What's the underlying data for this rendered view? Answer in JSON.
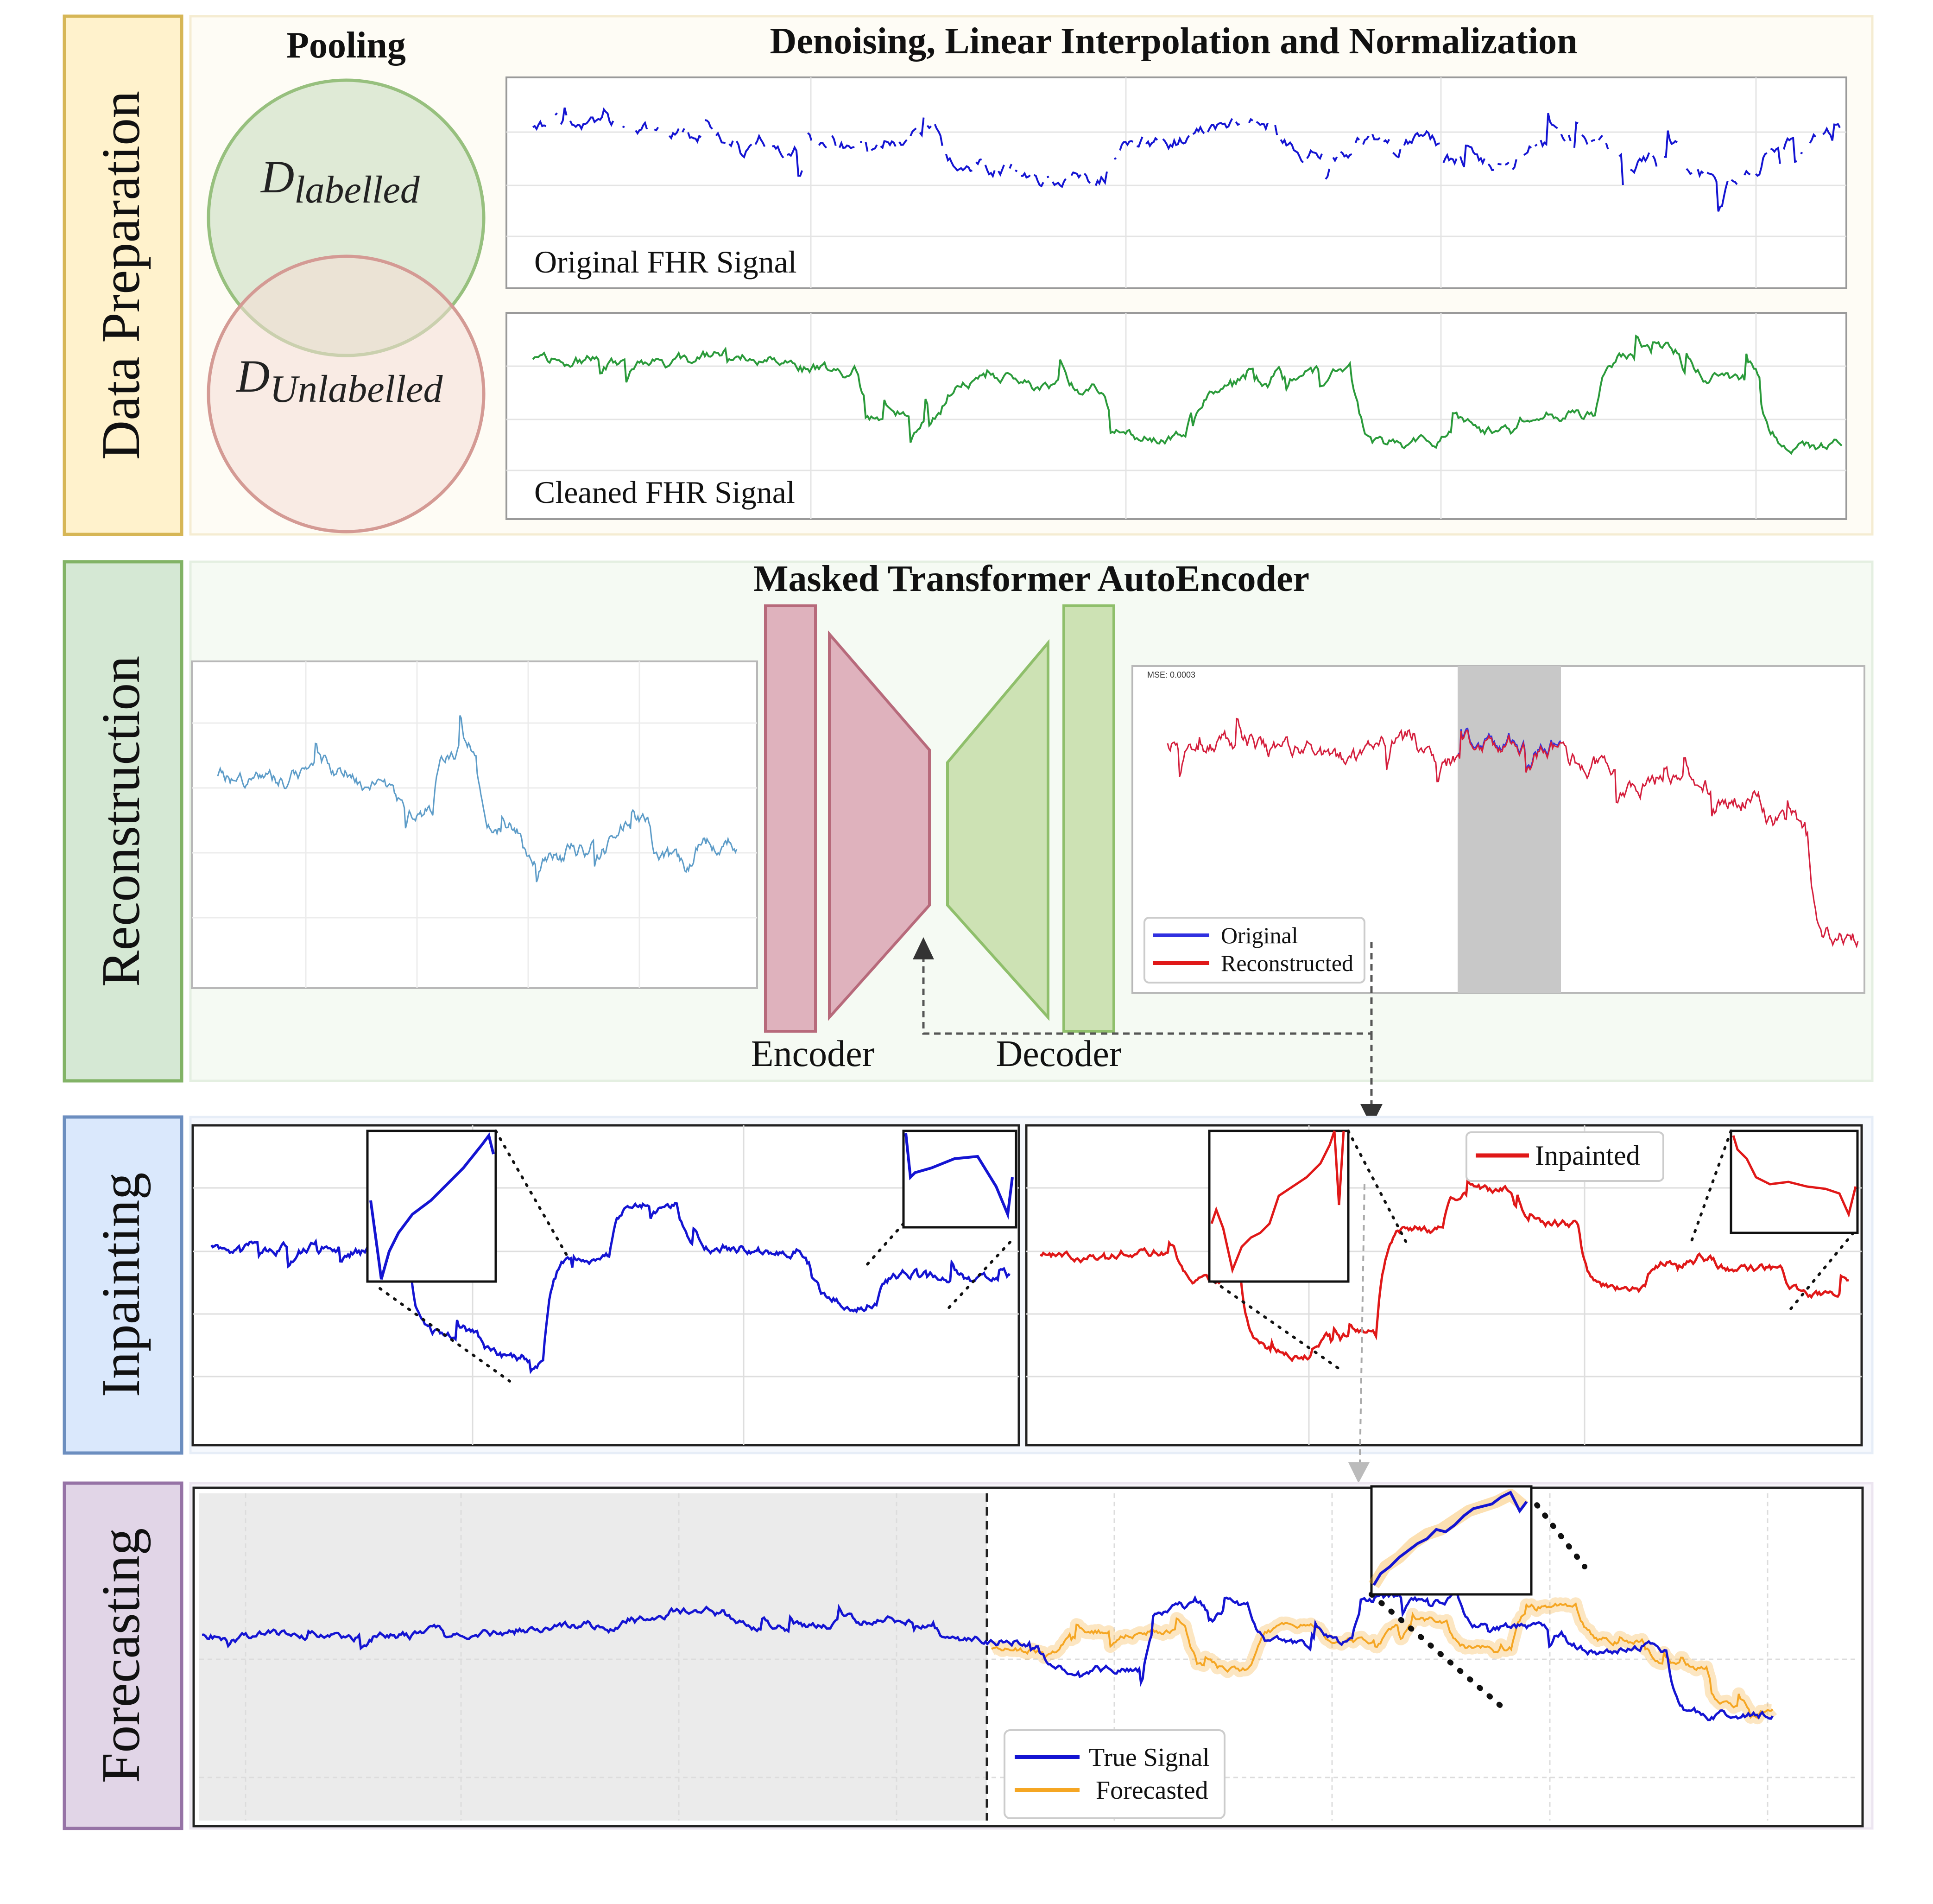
{
  "sections": {
    "data_preparation": {
      "label": "Data Preparation"
    },
    "reconstruction": {
      "label": "Reconstruction"
    },
    "inpainting": {
      "label": "Inpainting"
    },
    "forecasting": {
      "label": "Forecasting"
    }
  },
  "pooling": {
    "title": "Pooling",
    "labelled_base": "D",
    "labelled_sub": "labelled",
    "unlabelled_base": "D",
    "unlabelled_sub": "Unlabelled"
  },
  "denoise": {
    "title": "Denoising, Linear Interpolation and Normalization",
    "original_caption": "Original FHR Signal",
    "cleaned_caption": "Cleaned FHR Signal"
  },
  "autoencoder": {
    "title": "Masked Transformer AutoEncoder",
    "encoder_label": "Encoder",
    "decoder_label": "Decoder",
    "mse_text": "MSE: 0.0003"
  },
  "legends": {
    "original": "Original",
    "reconstructed": "Reconstructed",
    "inpainted": "Inpainted",
    "true_signal": "True Signal",
    "forecasted": "Forecasted"
  },
  "colors": {
    "prep_bg": "#fff2cc",
    "prep_border": "#d6b656",
    "recon_bg": "#d5e8d4",
    "recon_border": "#82b366",
    "inpaint_bg": "#dae8fc",
    "inpaint_border": "#6c8ebf",
    "forecast_bg": "#e1d5e7",
    "forecast_border": "#9673a6",
    "circle_green_fill": "#dbe8d3",
    "circle_green_stroke": "#97c07e",
    "circle_red_fill": "#f4dcd6",
    "circle_red_stroke": "#d49a94",
    "encoder_fill": "#dfb2bd",
    "encoder_stroke": "#b76a7b",
    "decoder_fill": "#cde2b4",
    "decoder_stroke": "#8fbf6b",
    "signal_blue": "#1414d2",
    "signal_green": "#2a9a3a",
    "signal_lightblue": "#5d9cc8",
    "signal_red": "#e01818",
    "signal_orange": "#f5a623",
    "mask_grey": "#c8c8c8"
  }
}
